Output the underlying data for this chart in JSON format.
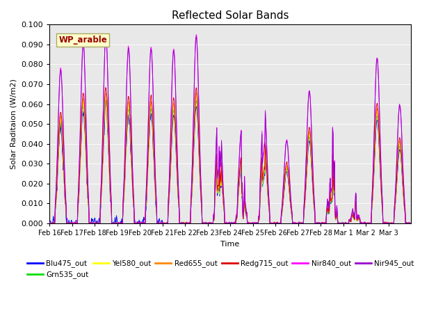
{
  "title": "Reflected Solar Bands",
  "xlabel": "Time",
  "ylabel": "Solar Raditaion (W/m2)",
  "annotation": "WP_arable",
  "ylim": [
    0,
    0.1
  ],
  "yticks": [
    0.0,
    0.01,
    0.02,
    0.03,
    0.04,
    0.05,
    0.06,
    0.07,
    0.08,
    0.09,
    0.1
  ],
  "series_order": [
    "Blu475_out",
    "Grn535_out",
    "Yel580_out",
    "Red655_out",
    "Redg715_out",
    "Nir840_out",
    "Nir945_out"
  ],
  "series": {
    "Blu475_out": {
      "color": "#0000ff",
      "scale": 0.62
    },
    "Grn535_out": {
      "color": "#00dd00",
      "scale": 0.65
    },
    "Yel580_out": {
      "color": "#ffff00",
      "scale": 0.67
    },
    "Red655_out": {
      "color": "#ff8800",
      "scale": 0.69
    },
    "Redg715_out": {
      "color": "#dd0000",
      "scale": 0.72
    },
    "Nir840_out": {
      "color": "#ff00ff",
      "scale": 1.0
    },
    "Nir945_out": {
      "color": "#9900cc",
      "scale": 0.99
    }
  },
  "x_tick_labels": [
    "Feb 16",
    "Feb 17",
    "Feb 18",
    "Feb 19",
    "Feb 20",
    "Feb 21",
    "Feb 22",
    "Feb 23",
    "Feb 24",
    "Feb 25",
    "Feb 26",
    "Feb 27",
    "Feb 28",
    "Mar 1",
    "Mar 2",
    "Mar 3"
  ],
  "bg_color": "#e8e8e8",
  "fig_bg": "#ffffff",
  "annotation_bg": "#ffffcc",
  "annotation_fg": "#990000",
  "annotation_border": "#aaaa66",
  "linewidth": 0.7,
  "legend_ncol": 6,
  "legend_fontsize": 7.5
}
